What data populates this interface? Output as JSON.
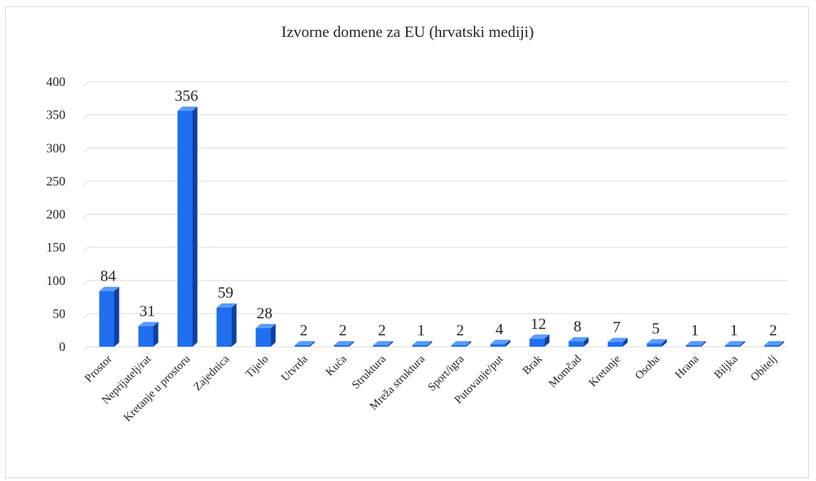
{
  "chart_data": {
    "type": "bar",
    "title": "Izvorne domene za EU (hrvatski mediji)",
    "xlabel": "",
    "ylabel": "",
    "ylim": [
      0,
      400
    ],
    "yticks": [
      0,
      50,
      100,
      150,
      200,
      250,
      300,
      350,
      400
    ],
    "grid": true,
    "categories": [
      "Prostor",
      "Neprijatelj/rat",
      "Kretanje u prostoru",
      "Zajednica",
      "Tijelo",
      "Utvrda",
      "Kuća",
      "Struktura",
      "Mreža struktura",
      "Sport/igra",
      "Putovanje/put",
      "Brak",
      "Momčad",
      "Kretanje",
      "Osoba",
      "Hrana",
      "Biljka",
      "Obitelj"
    ],
    "values": [
      84,
      31,
      356,
      59,
      28,
      2,
      2,
      2,
      1,
      2,
      4,
      12,
      8,
      7,
      5,
      1,
      1,
      2
    ],
    "colors": {
      "bar": "#1f6ff0",
      "bar_side": "#0f3fa0",
      "bar_top": "#5a9cff",
      "grid": "#d9d9d9"
    }
  }
}
